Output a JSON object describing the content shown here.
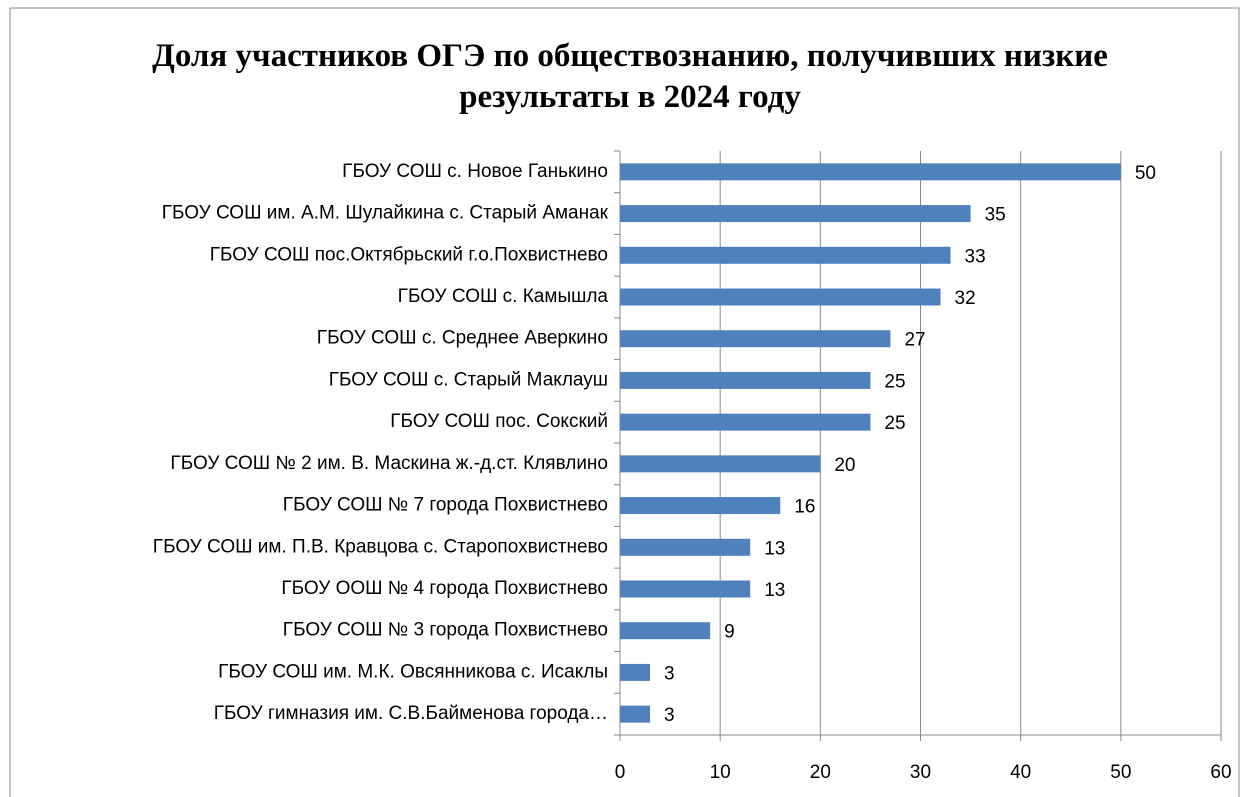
{
  "chart_data": {
    "type": "barh",
    "title": "Доля участников ОГЭ по обществознанию, получивших низкие результаты в 2024 году",
    "categories": [
      "ГБОУ СОШ с. Новое Ганькино",
      "ГБОУ СОШ им. А.М. Шулайкина с. Старый Аманак",
      "ГБОУ СОШ пос.Октябрьский г.о.Похвистнево",
      "ГБОУ СОШ с. Камышла",
      "ГБОУ СОШ с. Среднее Аверкино",
      "ГБОУ СОШ с. Старый Маклауш",
      "ГБОУ СОШ пос. Сокский",
      "ГБОУ СОШ № 2 им. В. Маскина ж.-д.ст. Клявлино",
      "ГБОУ СОШ № 7 города Похвистнево",
      "ГБОУ СОШ им. П.В. Кравцова с. Старопохвистнево",
      "ГБОУ ООШ № 4 города Похвистнево",
      "ГБОУ СОШ № 3 города Похвистнево",
      "ГБОУ СОШ им. М.К. Овсянникова с. Исаклы",
      "ГБОУ гимназия им. С.В.Байменова города…"
    ],
    "values": [
      50,
      35,
      33,
      32,
      27,
      25,
      25,
      20,
      16,
      13,
      13,
      9,
      3,
      3
    ],
    "color": "#4f81bd",
    "xlim": [
      0,
      60
    ],
    "xticks": [
      0,
      10,
      20,
      30,
      40,
      50,
      60
    ],
    "grid": true
  }
}
